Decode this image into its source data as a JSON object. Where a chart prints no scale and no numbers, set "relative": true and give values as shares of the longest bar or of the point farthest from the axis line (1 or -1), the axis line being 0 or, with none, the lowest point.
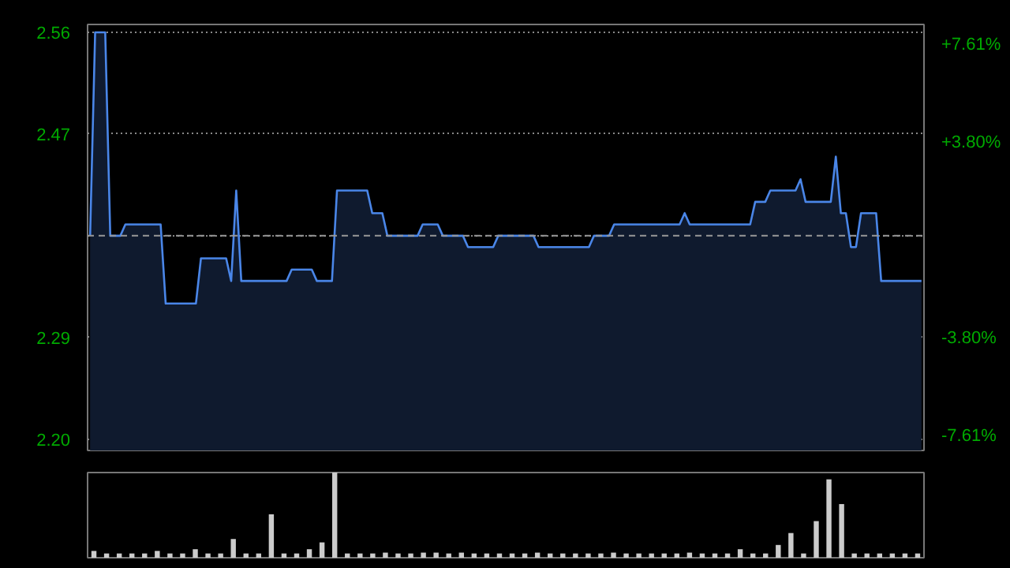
{
  "chart_data": [
    {
      "type": "area",
      "categories": [
        null,
        null,
        null,
        null,
        null,
        null,
        null,
        null,
        null,
        null,
        null,
        null,
        null,
        null,
        null,
        null,
        null,
        null,
        null,
        null,
        null,
        null,
        null,
        null,
        null,
        null,
        null,
        null,
        null,
        null,
        null,
        null,
        null,
        null,
        null,
        null,
        null,
        null,
        null,
        null,
        null,
        null,
        null,
        null,
        null,
        null,
        null,
        null,
        null,
        null,
        null,
        null,
        null,
        null,
        null,
        null,
        null,
        null,
        null,
        null,
        null,
        null,
        null,
        null,
        null,
        null,
        null,
        null,
        null,
        null,
        null,
        null,
        null,
        null,
        null,
        null,
        null,
        null,
        null,
        null,
        null,
        null,
        null,
        null,
        null,
        null,
        null,
        null,
        null,
        null,
        null,
        null,
        null,
        null,
        null,
        null,
        null,
        null,
        null,
        null,
        null,
        null,
        null,
        null,
        null,
        null,
        null,
        null,
        null,
        null,
        null,
        null,
        null,
        null,
        null,
        null,
        null,
        null,
        null,
        null,
        null,
        null,
        null,
        null,
        null,
        null,
        null,
        null,
        null,
        null,
        null,
        null,
        null,
        null,
        null,
        null,
        null,
        null,
        null,
        null,
        null,
        null,
        null,
        null,
        null,
        null,
        null,
        null,
        null,
        null,
        null,
        null,
        null,
        null,
        null,
        null,
        null,
        null,
        null,
        null,
        null,
        null,
        null,
        null,
        null,
        null
      ],
      "series": [
        {
          "color": "#4a86e8",
          "values": [
            2.38,
            2.56,
            2.56,
            2.56,
            2.38,
            2.38,
            2.38,
            2.39,
            2.39,
            2.39,
            2.39,
            2.39,
            2.39,
            2.39,
            2.39,
            2.32,
            2.32,
            2.32,
            2.32,
            2.32,
            2.32,
            2.32,
            2.36,
            2.36,
            2.36,
            2.36,
            2.36,
            2.36,
            2.34,
            2.42,
            2.34,
            2.34,
            2.34,
            2.34,
            2.34,
            2.34,
            2.34,
            2.34,
            2.34,
            2.34,
            2.35,
            2.35,
            2.35,
            2.35,
            2.35,
            2.34,
            2.34,
            2.34,
            2.34,
            2.42,
            2.42,
            2.42,
            2.42,
            2.42,
            2.42,
            2.42,
            2.4,
            2.4,
            2.4,
            2.38,
            2.38,
            2.38,
            2.38,
            2.38,
            2.38,
            2.38,
            2.39,
            2.39,
            2.39,
            2.39,
            2.38,
            2.38,
            2.38,
            2.38,
            2.38,
            2.37,
            2.37,
            2.37,
            2.37,
            2.37,
            2.37,
            2.38,
            2.38,
            2.38,
            2.38,
            2.38,
            2.38,
            2.38,
            2.38,
            2.37,
            2.37,
            2.37,
            2.37,
            2.37,
            2.37,
            2.37,
            2.37,
            2.37,
            2.37,
            2.37,
            2.38,
            2.38,
            2.38,
            2.38,
            2.39,
            2.39,
            2.39,
            2.39,
            2.39,
            2.39,
            2.39,
            2.39,
            2.39,
            2.39,
            2.39,
            2.39,
            2.39,
            2.39,
            2.4,
            2.39,
            2.39,
            2.39,
            2.39,
            2.39,
            2.39,
            2.39,
            2.39,
            2.39,
            2.39,
            2.39,
            2.39,
            2.39,
            2.41,
            2.41,
            2.41,
            2.42,
            2.42,
            2.42,
            2.42,
            2.42,
            2.42,
            2.43,
            2.41,
            2.41,
            2.41,
            2.41,
            2.41,
            2.41,
            2.45,
            2.4,
            2.4,
            2.37,
            2.37,
            2.4,
            2.4,
            2.4,
            2.4,
            2.34,
            2.34,
            2.34,
            2.34,
            2.34,
            2.34,
            2.34,
            2.34,
            2.34
          ]
        }
      ],
      "ylim": [
        2.19,
        2.567
      ],
      "yticks": [
        {
          "value": 2.56,
          "label": "2.56"
        },
        {
          "value": 2.47,
          "label": "2.47"
        },
        {
          "value": 2.38,
          "label": null
        },
        {
          "value": 2.29,
          "label": "2.29"
        },
        {
          "value": 2.2,
          "label": "2.20"
        }
      ],
      "y2lim": [
        -8.16,
        8.4
      ],
      "y2ticks": [
        {
          "value": 7.61,
          "label": "+7.61%"
        },
        {
          "value": 3.8,
          "label": "+3.80%"
        },
        {
          "value": -3.8,
          "label": "-3.80%"
        },
        {
          "value": -7.61,
          "label": "-7.61%"
        }
      ],
      "ref_lines": [
        {
          "axis": "y",
          "value": 2.38,
          "label": null,
          "color": "#999999",
          "line_style": "dashed"
        }
      ],
      "grid": "y",
      "tick_labels": "y"
    },
    {
      "type": "bar",
      "relative": true,
      "categories": [
        null,
        null,
        null,
        null,
        null,
        null,
        null,
        null,
        null,
        null,
        null,
        null,
        null,
        null,
        null,
        null,
        null,
        null,
        null,
        null,
        null,
        null,
        null,
        null,
        null,
        null,
        null,
        null,
        null,
        null,
        null,
        null,
        null,
        null,
        null,
        null,
        null,
        null,
        null,
        null,
        null,
        null,
        null,
        null,
        null,
        null,
        null,
        null,
        null,
        null,
        null,
        null,
        null,
        null,
        null,
        null,
        null,
        null,
        null,
        null,
        null,
        null,
        null,
        null,
        null,
        null
      ],
      "series": [
        {
          "color": "#cccccc",
          "values": [
            0.08,
            0.05,
            0.05,
            0.05,
            0.05,
            0.08,
            0.05,
            0.05,
            0.1,
            0.05,
            0.05,
            0.22,
            0.05,
            0.05,
            0.51,
            0.05,
            0.05,
            0.1,
            0.18,
            1.0,
            0.05,
            0.05,
            0.05,
            0.06,
            0.05,
            0.05,
            0.06,
            0.06,
            0.05,
            0.06,
            0.05,
            0.05,
            0.05,
            0.05,
            0.05,
            0.06,
            0.05,
            0.05,
            0.05,
            0.05,
            0.05,
            0.06,
            0.05,
            0.05,
            0.05,
            0.05,
            0.05,
            0.06,
            0.05,
            0.05,
            0.05,
            0.1,
            0.05,
            0.05,
            0.15,
            0.29,
            0.05,
            0.43,
            0.92,
            0.63,
            0.05,
            0.05,
            0.05,
            0.05,
            0.05,
            0.05
          ]
        }
      ],
      "tick_labels": false
    }
  ]
}
